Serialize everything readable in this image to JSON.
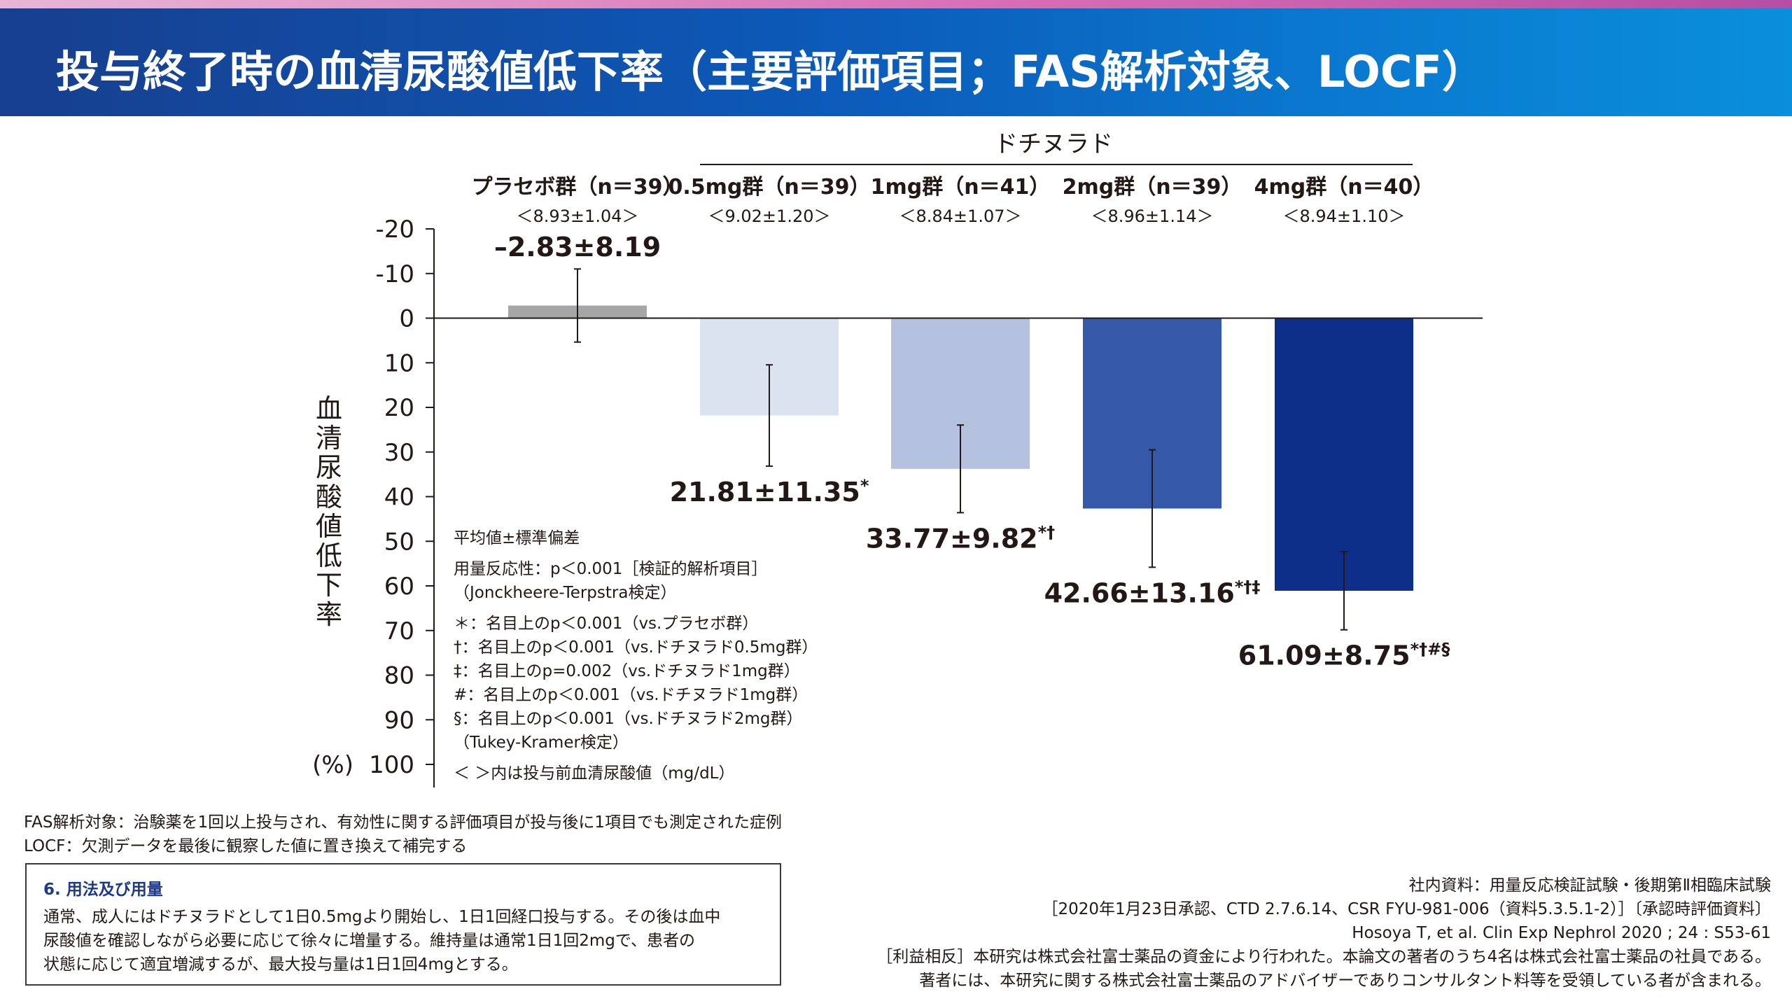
{
  "header": {
    "title": "投与終了時の血清尿酸値低下率（主要評価項目；FAS解析対象、LOCF）"
  },
  "colors": {
    "placebo": "#a6a6a6",
    "dose_0_5mg": "#dce3f0",
    "dose_1mg": "#b4c2e0",
    "dose_2mg": "#3559a8",
    "dose_4mg": "#0d2f8a"
  },
  "chart_data": {
    "type": "bar",
    "group_label": "ドチヌラド",
    "categories": [
      "プラセボ群（n＝39）",
      "0.5mg群（n＝39）",
      "1mg群（n＝41）",
      "2mg群（n＝39）",
      "4mg群（n＝40）"
    ],
    "baseline_labels": [
      "＜8.93±1.04＞",
      "＜9.02±1.20＞",
      "＜8.84±1.07＞",
      "＜8.96±1.14＞",
      "＜8.94±1.10＞"
    ],
    "values": [
      -2.83,
      21.81,
      33.77,
      42.66,
      61.09
    ],
    "errors": [
      8.19,
      11.35,
      9.82,
      13.16,
      8.75
    ],
    "value_labels": [
      "–2.83±8.19",
      "21.81±11.35",
      "33.77±9.82",
      "42.66±13.16",
      "61.09±8.75"
    ],
    "significance": [
      "",
      "*",
      "*†",
      "*†‡",
      "*†#§"
    ],
    "ylabel": "血清尿酸値低下率",
    "yunit": "(%)",
    "y_axis_inverted": true,
    "ylim": [
      -20,
      100
    ],
    "yticks": [
      -20,
      -10,
      0,
      10,
      20,
      30,
      40,
      50,
      60,
      70,
      80,
      90,
      100
    ],
    "grid": false
  },
  "legend_notes": {
    "stat": "平均値±標準偏差",
    "dose_response_1": "用量反応性：p＜0.001［検証的解析項目］",
    "dose_response_2": "（Jonckheere-Terpstra検定）",
    "sig_1": "＊：名目上のp＜0.001（vs.プラセボ群）",
    "sig_2": "†：名目上のp＜0.001（vs.ドチヌラド0.5mg群）",
    "sig_3": "‡：名目上のp=0.002（vs.ドチヌラド1mg群）",
    "sig_4": "#：名目上のp＜0.001（vs.ドチヌラド1mg群）",
    "sig_5": "§：名目上のp＜0.001（vs.ドチヌラド2mg群）",
    "tukey": "（Tukey-Kramer検定）",
    "baseline_note": "＜ ＞内は投与前血清尿酸値（mg/dL）"
  },
  "footnotes": {
    "fas": "FAS解析対象：治験薬を1回以上投与され、有効性に関する評価項目が投与後に1項目でも測定された症例",
    "locf": "LOCF：欠測データを最後に観察した値に置き換えて補完する"
  },
  "dosage": {
    "heading": "6. 用法及び用量",
    "line1": "通常、成人にはドチヌラドとして1日0.5mgより開始し、1日1回経口投与する。その後は血中",
    "line2": "尿酸値を確認しながら必要に応じて徐々に増量する。維持量は通常1日1回2mgで、患者の",
    "line3": "状態に応じて適宜増減するが、最大投与量は1日1回4mgとする。"
  },
  "references": {
    "line1": "社内資料：用量反応検証試験・後期第Ⅱ相臨床試験",
    "line2": "［2020年1月23日承認、CTD 2.7.6.14、CSR FYU-981-006（資料5.3.5.1-2）］〔承認時評価資料〕",
    "line3": "Hosoya T, et al. Clin Exp Nephrol 2020 ; 24 : S53-61",
    "line4": "［利益相反］本研究は株式会社富士薬品の資金により行われた。本論文の著者のうち4名は株式会社富士薬品の社員である。",
    "line5": "著者には、本研究に関する株式会社富士薬品のアドバイザーでありコンサルタント料等を受領している者が含まれる。"
  }
}
